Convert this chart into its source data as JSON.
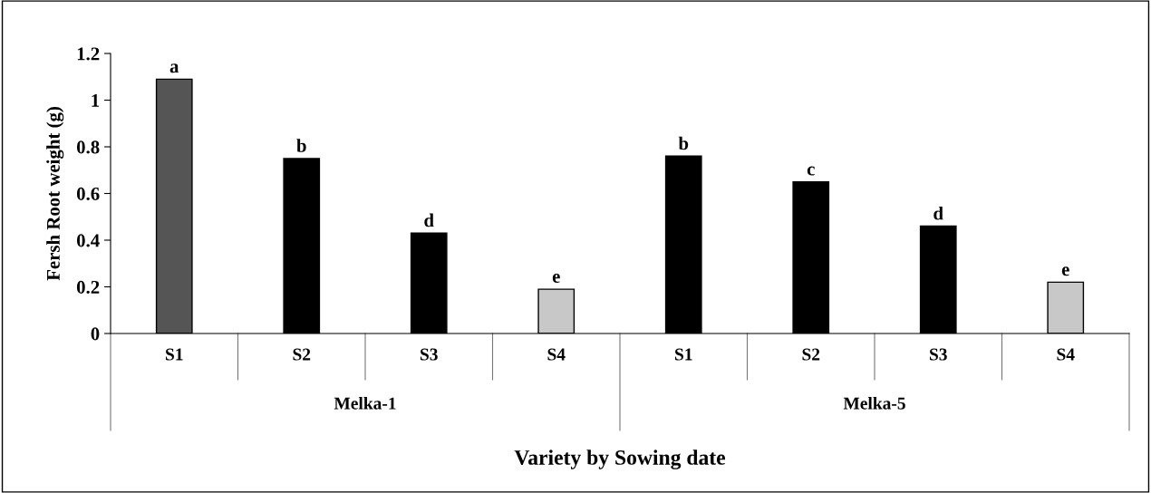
{
  "chart_data": {
    "type": "bar",
    "xlabel": "Variety by Sowing date",
    "ylabel": "Fersh Root weight (g)",
    "categories": [
      "S1",
      "S2",
      "S3",
      "S4",
      "S1",
      "S2",
      "S3",
      "S4"
    ],
    "values": [
      1.09,
      0.75,
      0.43,
      0.19,
      0.76,
      0.65,
      0.46,
      0.22
    ],
    "colors": [
      "#555555",
      "#000000",
      "#000000",
      "#c8c8c8",
      "#000000",
      "#000000",
      "#000000",
      "#c8c8c8"
    ],
    "value_labels": [
      "a",
      "b",
      "d",
      "e",
      "b",
      "c",
      "d",
      "e"
    ],
    "annotations": [
      "Melka-1",
      "Melka-5"
    ],
    "ylim": [
      0,
      1.2
    ],
    "yticks": [
      0,
      0.2,
      0.4,
      0.6,
      0.8,
      1,
      1.2
    ],
    "grid": false,
    "legend": false
  }
}
